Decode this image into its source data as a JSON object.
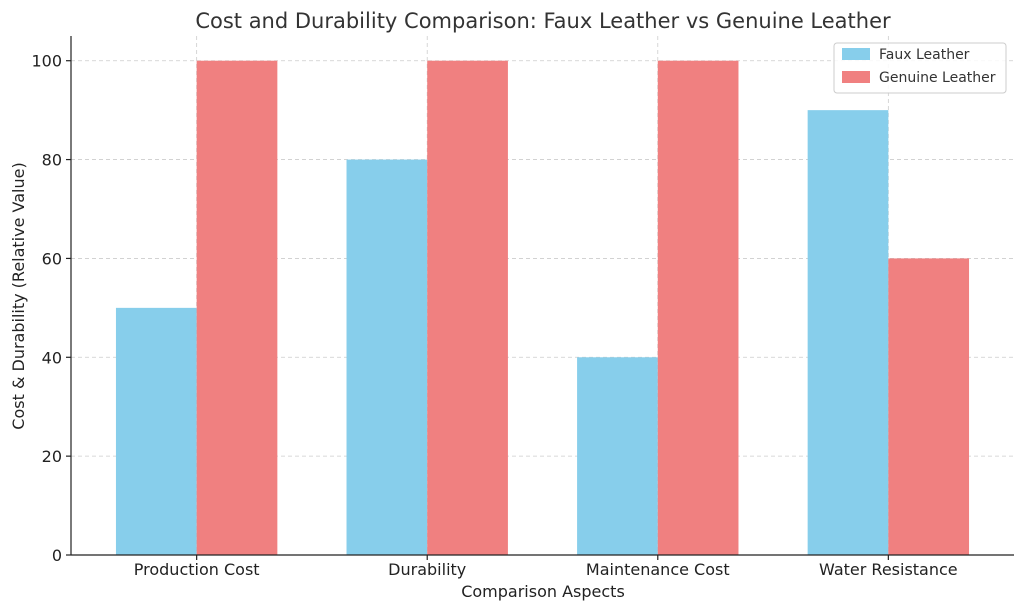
{
  "chart_data": {
    "type": "bar",
    "title": "Cost and Durability Comparison: Faux Leather vs Genuine Leather",
    "xlabel": "Comparison Aspects",
    "ylabel": "Cost & Durability (Relative Value)",
    "categories": [
      "Production Cost",
      "Durability",
      "Maintenance Cost",
      "Water Resistance"
    ],
    "series": [
      {
        "name": "Faux Leather",
        "values": [
          50,
          80,
          40,
          90
        ],
        "color": "#87CEEB"
      },
      {
        "name": "Genuine Leather",
        "values": [
          100,
          100,
          100,
          60
        ],
        "color": "#F08080"
      }
    ],
    "ylim": [
      0,
      105
    ],
    "yticks": [
      0,
      20,
      40,
      60,
      80,
      100
    ],
    "grid": true,
    "legend": "top-right"
  }
}
